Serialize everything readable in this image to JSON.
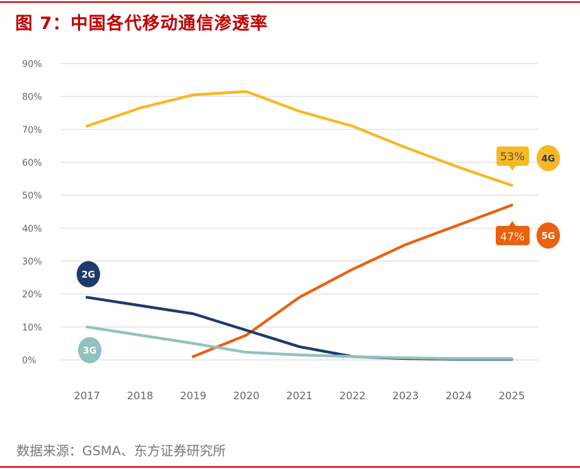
{
  "title": "图 7：中国各代移动通信渗透率",
  "source": "数据来源：GSMA、东方证券研究所",
  "chart_data": {
    "type": "line",
    "title": "",
    "xlabel": "",
    "ylabel": "",
    "x": [
      "2017",
      "2018",
      "2019",
      "2020",
      "2021",
      "2022",
      "2023",
      "2024",
      "2025"
    ],
    "ylim": [
      0,
      90
    ],
    "yticks": [
      "0%",
      "10%",
      "20%",
      "30%",
      "40%",
      "50%",
      "60%",
      "70%",
      "80%",
      "90%"
    ],
    "grid": true,
    "series": [
      {
        "name": "4G",
        "color": "#f7b824",
        "values": [
          71,
          76.5,
          80.5,
          81.5,
          75.5,
          71,
          64.5,
          58.5,
          53
        ]
      },
      {
        "name": "5G",
        "color": "#e8620f",
        "values": [
          null,
          null,
          1,
          7.5,
          19,
          27.5,
          35,
          41,
          47
        ]
      },
      {
        "name": "2G",
        "color": "#1e3a6b",
        "values": [
          19,
          16.5,
          14,
          9,
          4,
          1,
          0.4,
          0.2,
          0.2
        ]
      },
      {
        "name": "3G",
        "color": "#93c1bd",
        "values": [
          10,
          7.5,
          5,
          2.3,
          1.5,
          1,
          0.6,
          0.4,
          0.4
        ]
      }
    ],
    "annotations": [
      {
        "series": "4G",
        "x": "2025",
        "label": "53%"
      },
      {
        "series": "5G",
        "x": "2025",
        "label": "47%"
      }
    ]
  }
}
